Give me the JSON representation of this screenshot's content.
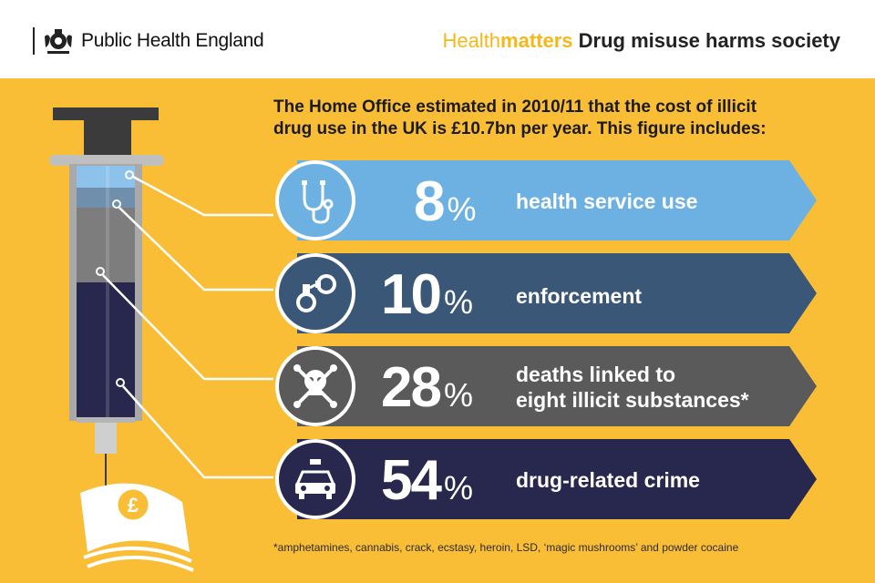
{
  "header": {
    "org": "Public Health England",
    "brand_light": "Health",
    "brand_bold": "matters",
    "title": "Drug misuse harms society"
  },
  "intro": "The Home Office estimated in 2010/11 that the cost of illicit drug use in the UK is £10.7bn per year. This figure includes:",
  "items": [
    {
      "value": "8",
      "unit": "%",
      "label": "health service use",
      "color": "#6cb1e2",
      "icon": "stethoscope-icon"
    },
    {
      "value": "10",
      "unit": "%",
      "label": "enforcement",
      "color": "#3b5777",
      "icon": "handcuffs-icon"
    },
    {
      "value": "28",
      "unit": "%",
      "label_line1": "deaths linked to",
      "label_line2": "eight illicit substances*",
      "color": "#5a5a5a",
      "icon": "skull-crossbones-icon"
    },
    {
      "value": "54",
      "unit": "%",
      "label": "drug-related crime",
      "color": "#28284f",
      "icon": "police-car-icon"
    }
  ],
  "footnote": "*amphetamines, cannabis, crack, ecstasy, heroin, LSD, ‘magic mushrooms’ and powder cocaine",
  "colors": {
    "background": "#f9bd36",
    "accent": "#f8b719"
  }
}
